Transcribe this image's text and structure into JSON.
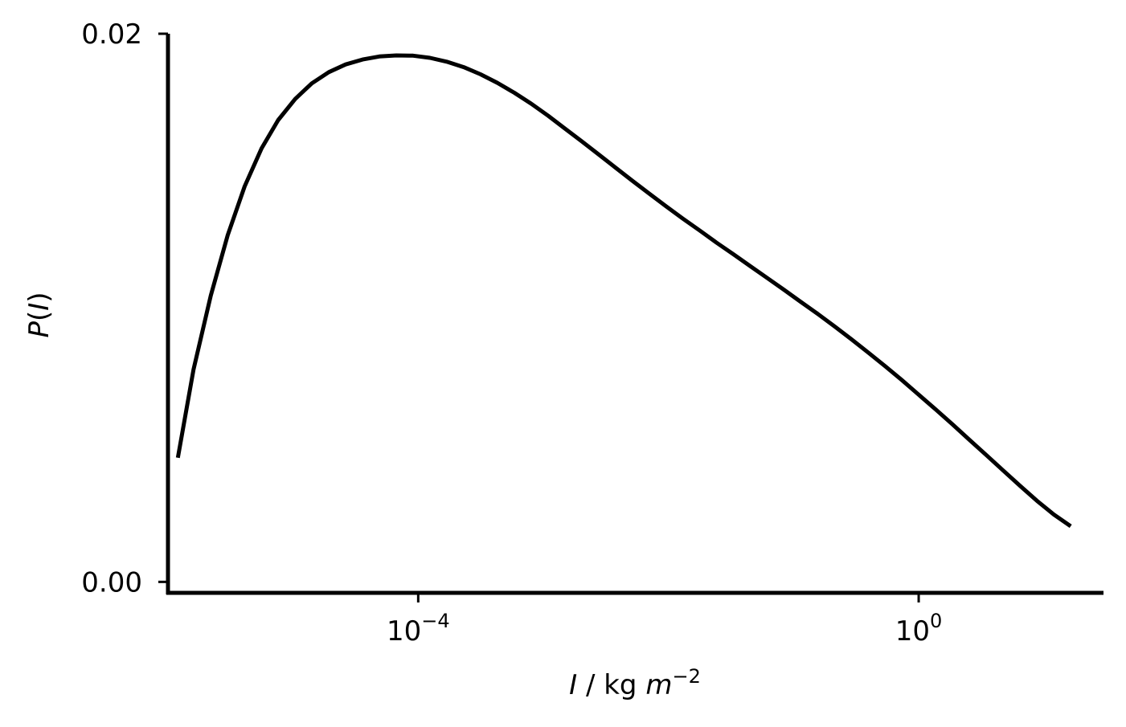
{
  "chart_data": {
    "type": "line",
    "title": "",
    "xlabel": {
      "var": "I",
      "text": " / kg ",
      "unit_var": "m",
      "unit_exp": "−2"
    },
    "ylabel": {
      "var_open": "P(",
      "var": "I",
      "var_close": ")"
    },
    "x_scale": "log",
    "xlim": [
      1e-06,
      30
    ],
    "ylim": [
      -0.0004,
      0.02
    ],
    "x_ticks": [
      {
        "value": 0.0001,
        "base": "10",
        "exp": "−4"
      },
      {
        "value": 1,
        "base": "10",
        "exp": "0"
      }
    ],
    "y_ticks": [
      {
        "value": 0.0,
        "label": "0.00"
      },
      {
        "value": 0.02,
        "label": "0.02"
      }
    ],
    "grid": false,
    "legend": "none",
    "line_color": "#000000",
    "series": [
      {
        "x": [
          1.2e-06,
          1.6e-06,
          2.2e-06,
          3e-06,
          4.1e-06,
          5.6e-06,
          7.6e-06,
          1.04e-05,
          1.41e-05,
          1.93e-05,
          2.63e-05,
          3.59e-05,
          4.89e-05,
          6.67e-05,
          9.1e-05,
          0.000124,
          0.000169,
          0.000231,
          0.000315,
          0.000429,
          0.000585,
          0.000798,
          0.00109,
          0.00148,
          0.00202,
          0.00276,
          0.00376,
          0.00513,
          0.007,
          0.00954,
          0.013,
          0.0178,
          0.0242,
          0.0331,
          0.0451,
          0.0615,
          0.0838,
          0.114,
          0.156,
          0.213,
          0.29,
          0.395,
          0.539,
          0.735,
          1.0,
          1.37,
          1.87,
          2.55,
          3.48,
          4.74,
          6.47,
          8.82,
          12.0,
          16.4
        ],
        "y": [
          0.00453,
          0.00775,
          0.01045,
          0.01265,
          0.01443,
          0.01582,
          0.01685,
          0.01762,
          0.01819,
          0.0186,
          0.01888,
          0.01906,
          0.01917,
          0.01921,
          0.0192,
          0.01912,
          0.01898,
          0.01878,
          0.01852,
          0.01821,
          0.01785,
          0.01745,
          0.01701,
          0.01655,
          0.01608,
          0.0156,
          0.01512,
          0.01464,
          0.01417,
          0.01371,
          0.01326,
          0.01282,
          0.01238,
          0.01195,
          0.01152,
          0.01109,
          0.01066,
          0.01022,
          0.00978,
          0.00932,
          0.00885,
          0.00837,
          0.00787,
          0.00736,
          0.00683,
          0.00629,
          0.00574,
          0.00518,
          0.00462,
          0.00406,
          0.0035,
          0.00296,
          0.00246,
          0.00203
        ]
      }
    ]
  }
}
